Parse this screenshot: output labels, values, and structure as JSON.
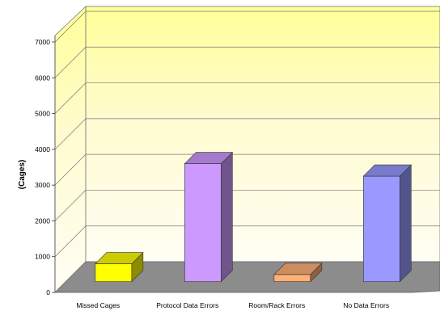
{
  "chart_data": {
    "type": "bar",
    "title": "",
    "xlabel": "",
    "ylabel": "(Cages)",
    "ylim": [
      0,
      7000
    ],
    "y_ticks": [
      0,
      1000,
      2000,
      3000,
      4000,
      5000,
      6000,
      7000
    ],
    "categories": [
      "Missed Cages",
      "Protocol Data Errors",
      "Room/Rack Errors",
      "No Data Errors"
    ],
    "values": [
      500,
      3300,
      200,
      2950
    ],
    "grid": true,
    "legend": "none",
    "three_d": true,
    "bar_colors": [
      "#ffff00",
      "#cc99ff",
      "#ffb077",
      "#9999ff"
    ],
    "floor_color": "#8c8c8c",
    "wall_color": "#fffacd"
  }
}
